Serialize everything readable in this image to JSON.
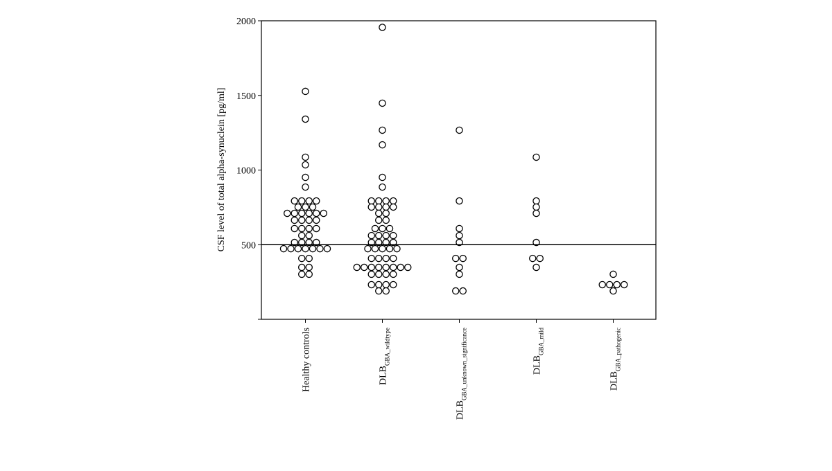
{
  "chart_data": {
    "type": "dot",
    "y_label": "CSF level of total alpha-synuclein [pg/ml]",
    "categories": [
      {
        "label": "Healthy controls"
      },
      {
        "label": "DLB",
        "subscript": "GBA_wildtype"
      },
      {
        "label": "DLB",
        "subscript": "GBA_unknown_significance"
      },
      {
        "label": "DLB",
        "subscript": "GBA_mild"
      },
      {
        "label": "DLB",
        "subscript": "GBA_pathogenic"
      }
    ],
    "values": [
      [
        1527,
        1341,
        1086,
        1035,
        951,
        886,
        793,
        793,
        793,
        793,
        752,
        752,
        752,
        710,
        710,
        710,
        710,
        710,
        710,
        664,
        664,
        664,
        664,
        608,
        608,
        608,
        608,
        561,
        561,
        515,
        515,
        515,
        515,
        473,
        473,
        473,
        473,
        473,
        473,
        473,
        408,
        408,
        348,
        348,
        302,
        302
      ],
      [
        1956,
        1448,
        1267,
        1169,
        951,
        886,
        793,
        793,
        793,
        793,
        752,
        752,
        752,
        752,
        710,
        710,
        664,
        664,
        608,
        608,
        608,
        561,
        561,
        561,
        561,
        515,
        515,
        515,
        515,
        473,
        473,
        473,
        473,
        473,
        408,
        408,
        408,
        408,
        348,
        348,
        348,
        348,
        348,
        348,
        348,
        348,
        302,
        302,
        302,
        302,
        232,
        232,
        232,
        232,
        190,
        190
      ],
      [
        1267,
        793,
        608,
        561,
        515,
        408,
        408,
        348,
        302,
        190,
        190
      ],
      [
        1086,
        793,
        752,
        710,
        515,
        408,
        408,
        348
      ],
      [
        302,
        232,
        232,
        232,
        232,
        190
      ]
    ],
    "reference_line": 500,
    "ylim": [
      0,
      2000
    ],
    "yticks": [
      500,
      1000,
      1500,
      2000
    ],
    "marker_color": "#000000"
  }
}
